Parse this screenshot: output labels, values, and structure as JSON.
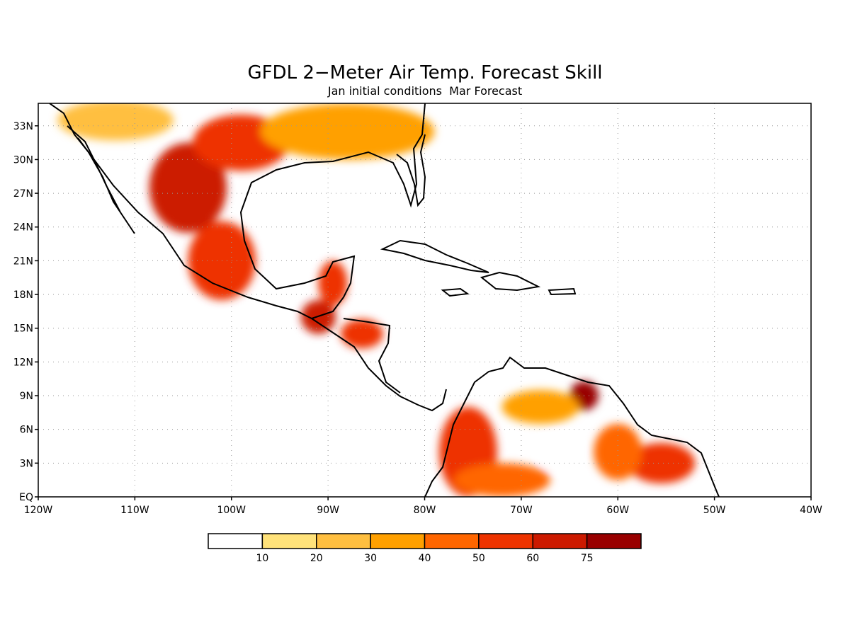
{
  "title": "GFDL 2−Meter Air Temp. Forecast Skill",
  "subtitle": "Jan initial conditions  Mar Forecast",
  "map": {
    "lon_range": [
      -120,
      -40
    ],
    "lat_range": [
      0,
      35
    ],
    "lon_labels": [
      "120W",
      "110W",
      "100W",
      "90W",
      "80W",
      "70W",
      "60W",
      "50W",
      "40W"
    ],
    "lat_labels": [
      "EQ",
      "3N",
      "6N",
      "9N",
      "12N",
      "15N",
      "18N",
      "21N",
      "24N",
      "27N",
      "30N",
      "33N"
    ],
    "grid": "dotted"
  },
  "legend": {
    "tick_labels": [
      "10",
      "20",
      "30",
      "40",
      "50",
      "60",
      "75"
    ],
    "colors": [
      "#ffffff",
      "#ffe27a",
      "#ffbf40",
      "#ffa000",
      "#ff6600",
      "#ee3300",
      "#cc1a00",
      "#990000"
    ]
  },
  "regions": [
    {
      "name": "mexico-interior",
      "level": 6,
      "lon": -104.5,
      "lat": 27.5,
      "rx": 4,
      "ry": 4
    },
    {
      "name": "mexico-south",
      "level": 5,
      "lon": -101,
      "lat": 21,
      "rx": 3.5,
      "ry": 3.5
    },
    {
      "name": "texas",
      "level": 5,
      "lon": -99,
      "lat": 31.5,
      "rx": 5,
      "ry": 2.5
    },
    {
      "name": "us-south",
      "level": 3,
      "lon": -88,
      "lat": 32.5,
      "rx": 9,
      "ry": 2.5
    },
    {
      "name": "southwest-us",
      "level": 2,
      "lon": -112,
      "lat": 33.5,
      "rx": 6,
      "ry": 1.8
    },
    {
      "name": "yucatan",
      "level": 5,
      "lon": -89.5,
      "lat": 19,
      "rx": 1.5,
      "ry": 2
    },
    {
      "name": "guatemala",
      "level": 6,
      "lon": -91,
      "lat": 16,
      "rx": 1.8,
      "ry": 1.5
    },
    {
      "name": "honduras",
      "level": 5,
      "lon": -86.5,
      "lat": 14.5,
      "rx": 2.2,
      "ry": 1.3
    },
    {
      "name": "colombia-west",
      "level": 5,
      "lon": -75.5,
      "lat": 4,
      "rx": 3,
      "ry": 4
    },
    {
      "name": "venezuela-east",
      "level": 7,
      "lon": -63.5,
      "lat": 9,
      "rx": 1.5,
      "ry": 1.3
    },
    {
      "name": "venezuela-north",
      "level": 3,
      "lon": -68,
      "lat": 8,
      "rx": 4,
      "ry": 1.5
    },
    {
      "name": "amazon-north",
      "level": 4,
      "lon": -72,
      "lat": 1.5,
      "rx": 5,
      "ry": 1.5
    },
    {
      "name": "guianas",
      "level": 5,
      "lon": -55.5,
      "lat": 3,
      "rx": 3.5,
      "ry": 1.8
    },
    {
      "name": "guyana",
      "level": 4,
      "lon": -60,
      "lat": 4,
      "rx": 2.5,
      "ry": 2.5
    },
    {
      "name": "venezuela-south-low",
      "level": 0,
      "lon": -66,
      "lat": 4,
      "rx": 2,
      "ry": 1.5
    }
  ]
}
